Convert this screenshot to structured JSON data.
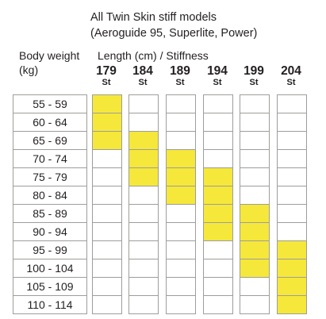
{
  "title": {
    "line1": "All Twin Skin stiff models",
    "line2": "(Aeroguide 95, Superlite, Power)"
  },
  "row_header": {
    "line1": "Body weight",
    "line2": "(kg)"
  },
  "column_header": "Length (cm) / Stiffness",
  "stiffness_label": "St",
  "highlight_color": "#f5e83a",
  "lengths": [
    "179",
    "184",
    "189",
    "194",
    "199",
    "204"
  ],
  "weights": [
    "55 - 59",
    "60 - 64",
    "65 - 69",
    "70 - 74",
    "75 - 79",
    "80 - 84",
    "85 - 89",
    "90 - 94",
    "95 - 99",
    "100 - 104",
    "105 - 109",
    "110 - 114"
  ],
  "recommended": {
    "179": [
      "55 - 59",
      "60 - 64",
      "65 - 69"
    ],
    "184": [
      "65 - 69",
      "70 - 74",
      "75 - 79"
    ],
    "189": [
      "70 - 74",
      "75 - 79",
      "80 - 84"
    ],
    "194": [
      "75 - 79",
      "80 - 84",
      "85 - 89",
      "90 - 94"
    ],
    "199": [
      "85 - 89",
      "90 - 94",
      "95 - 99",
      "100 - 104"
    ],
    "204": [
      "95 - 99",
      "100 - 104",
      "105 - 109",
      "110 - 114"
    ]
  }
}
